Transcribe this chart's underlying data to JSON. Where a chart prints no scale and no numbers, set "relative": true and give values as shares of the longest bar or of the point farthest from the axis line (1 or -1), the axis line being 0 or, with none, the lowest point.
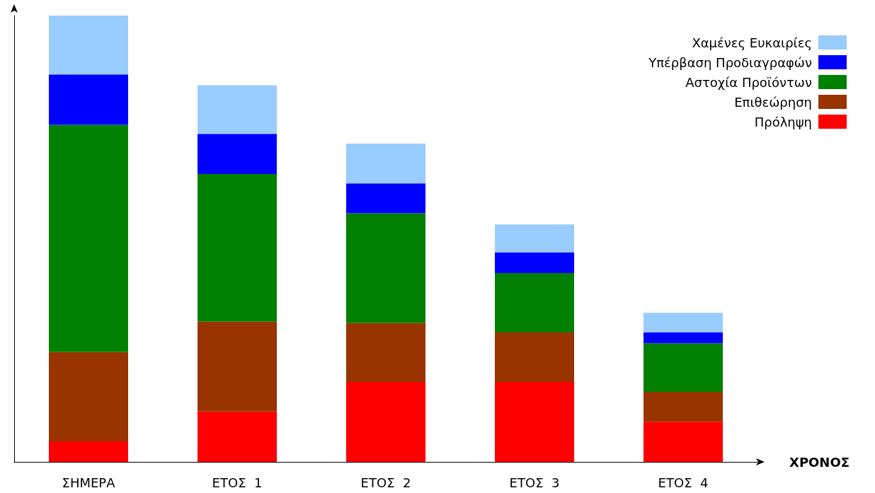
{
  "chart_data": {
    "type": "bar",
    "stacked": true,
    "relative": true,
    "xlabel": "ΧΡΟΝΟΣ",
    "categories": [
      "ΣΗΜΕΡΑ",
      "ΕΤΟΣ  1",
      "ΕΤΟΣ  2",
      "ΕΤΟΣ  3",
      "ΕΤΟΣ  4"
    ],
    "legend": "top right",
    "grid": false,
    "series": [
      {
        "name": "Πρόληψη",
        "color": "#ff0000",
        "values": [
          0.046,
          0.113,
          0.179,
          0.179,
          0.09
        ]
      },
      {
        "name": "Επιθεώρηση",
        "color": "#993300",
        "values": [
          0.2,
          0.201,
          0.132,
          0.111,
          0.067
        ]
      },
      {
        "name": "Αστοχία Προϊόντων",
        "color": "#008000",
        "values": [
          0.509,
          0.331,
          0.246,
          0.133,
          0.109
        ]
      },
      {
        "name": "Υπέρβαση Προδιαγραφών",
        "color": "#0000ff",
        "values": [
          0.113,
          0.09,
          0.067,
          0.046,
          0.024
        ]
      },
      {
        "name": "Χαμένες Ευκαιρίες",
        "color": "#99ccff",
        "values": [
          0.132,
          0.109,
          0.089,
          0.063,
          0.044
        ]
      }
    ]
  }
}
